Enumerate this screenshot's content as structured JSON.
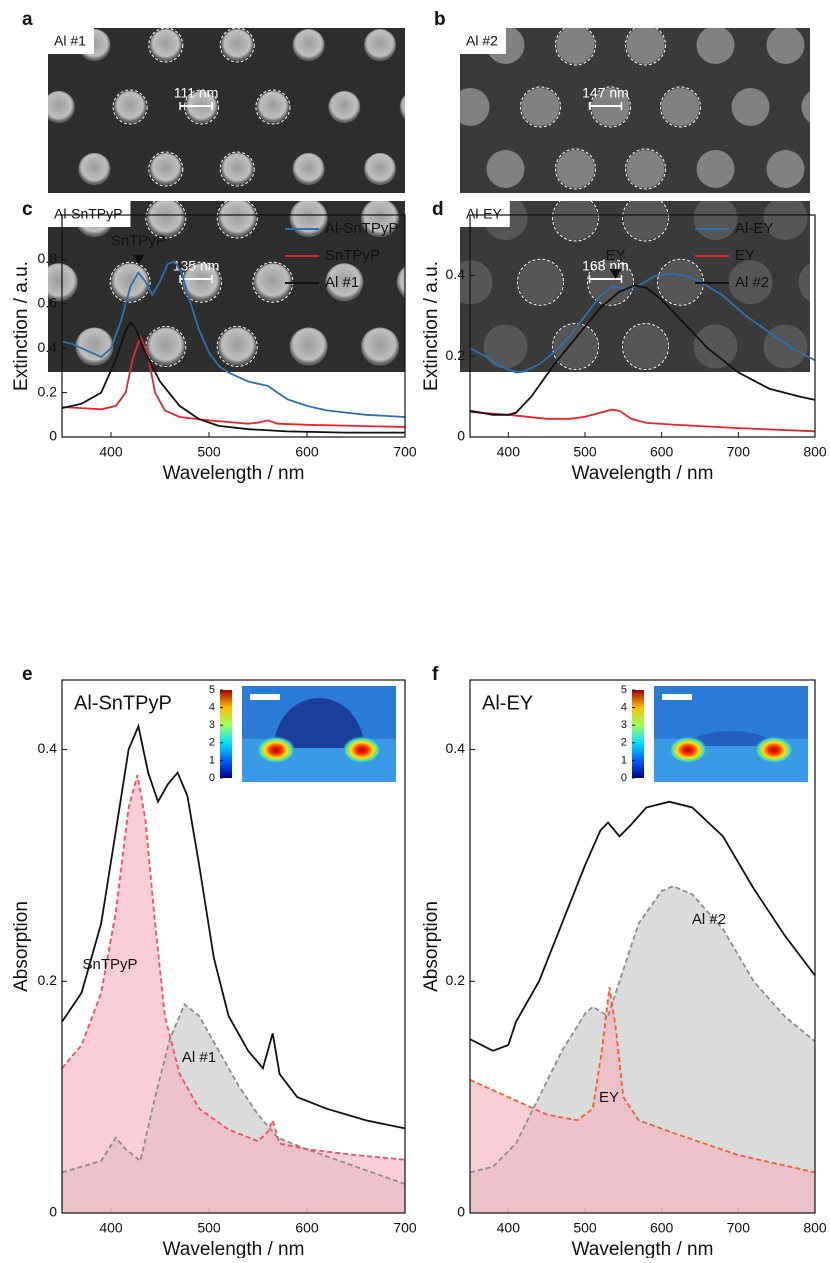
{
  "figure": {
    "images": [
      {
        "panel": "a",
        "top": {
          "label": "Al #1",
          "scale": "111 nm"
        },
        "bottom": {
          "label": "Al-SnTPyP",
          "scale": "135 nm"
        }
      },
      {
        "panel": "b",
        "top": {
          "label": "Al #2",
          "scale": "147 nm"
        },
        "bottom": {
          "label": "Al-EY",
          "scale": "168 nm"
        }
      }
    ]
  },
  "chart_data": [
    {
      "type": "line",
      "panel": "c",
      "x_label": "Wavelength / nm",
      "y_label": "Extinction / a.u.",
      "xlim": [
        350,
        700
      ],
      "xticks": [
        400,
        500,
        600,
        700
      ],
      "ylim": [
        0,
        1.0
      ],
      "yticks": [
        0.0,
        0.2,
        0.4,
        0.6,
        0.8
      ],
      "legend": "top-right",
      "annotations": [
        {
          "text": "SnTPyP",
          "x": 428
        }
      ],
      "series": [
        {
          "name": "Al-SnTPyP",
          "color": "#2e6fad",
          "x": [
            350,
            360,
            370,
            380,
            390,
            400,
            410,
            420,
            428,
            435,
            442,
            450,
            458,
            465,
            472,
            480,
            490,
            500,
            510,
            520,
            530,
            540,
            550,
            560,
            570,
            580,
            600,
            620,
            640,
            660,
            680,
            700
          ],
          "values": [
            0.43,
            0.42,
            0.4,
            0.38,
            0.36,
            0.4,
            0.52,
            0.68,
            0.74,
            0.7,
            0.64,
            0.7,
            0.78,
            0.79,
            0.74,
            0.62,
            0.48,
            0.38,
            0.32,
            0.29,
            0.27,
            0.25,
            0.24,
            0.23,
            0.2,
            0.17,
            0.14,
            0.12,
            0.11,
            0.1,
            0.095,
            0.09
          ]
        },
        {
          "name": "SnTPyP",
          "color": "#e0282e",
          "x": [
            350,
            370,
            390,
            405,
            415,
            422,
            430,
            437,
            445,
            455,
            470,
            500,
            540,
            550,
            560,
            570,
            600,
            650,
            700
          ],
          "values": [
            0.135,
            0.13,
            0.125,
            0.14,
            0.2,
            0.35,
            0.45,
            0.38,
            0.2,
            0.12,
            0.09,
            0.075,
            0.06,
            0.065,
            0.075,
            0.06,
            0.055,
            0.05,
            0.045
          ]
        },
        {
          "name": "Al #1",
          "color": "#111111",
          "x": [
            350,
            370,
            390,
            405,
            415,
            420,
            425,
            435,
            450,
            470,
            490,
            510,
            540,
            580,
            640,
            700
          ],
          "values": [
            0.13,
            0.15,
            0.2,
            0.35,
            0.48,
            0.515,
            0.49,
            0.38,
            0.25,
            0.14,
            0.08,
            0.05,
            0.035,
            0.025,
            0.02,
            0.02
          ]
        }
      ]
    },
    {
      "type": "line",
      "panel": "d",
      "x_label": "Wavelength / nm",
      "y_label": "Extinction / a.u.",
      "xlim": [
        350,
        800
      ],
      "xticks": [
        400,
        500,
        600,
        700,
        800
      ],
      "ylim": [
        0,
        0.55
      ],
      "yticks": [
        0.0,
        0.2,
        0.4
      ],
      "legend": "top-right",
      "annotations": [
        {
          "text": "EY",
          "x": 540
        }
      ],
      "series": [
        {
          "name": "Al-EY",
          "color": "#2e6fad",
          "x": [
            350,
            370,
            390,
            410,
            420,
            440,
            460,
            480,
            500,
            520,
            535,
            545,
            560,
            575,
            590,
            610,
            630,
            650,
            680,
            710,
            740,
            770,
            800
          ],
          "values": [
            0.22,
            0.2,
            0.175,
            0.16,
            0.162,
            0.18,
            0.21,
            0.25,
            0.3,
            0.35,
            0.372,
            0.37,
            0.368,
            0.38,
            0.398,
            0.405,
            0.4,
            0.385,
            0.35,
            0.3,
            0.26,
            0.22,
            0.19
          ]
        },
        {
          "name": "EY",
          "color": "#e0282e",
          "x": [
            350,
            400,
            450,
            480,
            500,
            520,
            535,
            545,
            560,
            580,
            620,
            700,
            800
          ],
          "values": [
            0.062,
            0.055,
            0.045,
            0.045,
            0.05,
            0.06,
            0.068,
            0.065,
            0.045,
            0.035,
            0.03,
            0.022,
            0.014
          ]
        },
        {
          "name": "Al #2",
          "color": "#111111",
          "x": [
            350,
            380,
            400,
            410,
            430,
            460,
            490,
            520,
            545,
            565,
            580,
            600,
            630,
            660,
            700,
            740,
            780,
            800
          ],
          "values": [
            0.065,
            0.055,
            0.055,
            0.06,
            0.1,
            0.18,
            0.25,
            0.32,
            0.36,
            0.375,
            0.37,
            0.34,
            0.28,
            0.22,
            0.16,
            0.12,
            0.1,
            0.092
          ]
        }
      ]
    },
    {
      "type": "area",
      "panel": "e",
      "title": "Al-SnTPyP",
      "x_label": "Wavelength / nm",
      "y_label": "Absorption",
      "xlim": [
        350,
        700
      ],
      "xticks": [
        400,
        500,
        600,
        700
      ],
      "ylim": [
        0,
        0.46
      ],
      "yticks": [
        0.0,
        0.2,
        0.4
      ],
      "inset": {
        "colorbar_ticks": [
          0,
          1,
          2,
          3,
          4,
          5
        ]
      },
      "series": [
        {
          "name": "Al #1",
          "color": "#8c8c8c",
          "fill": "#c8c8c8",
          "linestyle": "dashed",
          "x": [
            350,
            390,
            405,
            415,
            430,
            445,
            460,
            475,
            490,
            510,
            530,
            550,
            570,
            600,
            650,
            700
          ],
          "values": [
            0.035,
            0.045,
            0.065,
            0.055,
            0.045,
            0.1,
            0.15,
            0.18,
            0.17,
            0.14,
            0.11,
            0.085,
            0.065,
            0.055,
            0.04,
            0.025
          ]
        },
        {
          "name": "SnTPyP",
          "color": "#f05060",
          "fill": "#f8b4c0",
          "linestyle": "dashed",
          "x": [
            350,
            370,
            390,
            405,
            418,
            427,
            435,
            445,
            455,
            470,
            490,
            520,
            550,
            560,
            565,
            572,
            600,
            650,
            700
          ],
          "values": [
            0.125,
            0.145,
            0.19,
            0.26,
            0.35,
            0.378,
            0.34,
            0.25,
            0.17,
            0.12,
            0.09,
            0.072,
            0.062,
            0.07,
            0.08,
            0.06,
            0.055,
            0.05,
            0.046
          ]
        },
        {
          "color": "#111111",
          "x": [
            350,
            370,
            390,
            405,
            418,
            428,
            438,
            448,
            458,
            468,
            478,
            490,
            505,
            520,
            540,
            555,
            565,
            572,
            590,
            620,
            660,
            700
          ],
          "values": [
            0.165,
            0.19,
            0.25,
            0.33,
            0.4,
            0.42,
            0.38,
            0.355,
            0.37,
            0.38,
            0.36,
            0.3,
            0.22,
            0.17,
            0.14,
            0.125,
            0.155,
            0.12,
            0.1,
            0.09,
            0.08,
            0.073
          ]
        }
      ]
    },
    {
      "type": "area",
      "panel": "f",
      "title": "Al-EY",
      "x_label": "Wavelength / nm",
      "y_label": "Absorption",
      "xlim": [
        350,
        800
      ],
      "xticks": [
        400,
        500,
        600,
        700,
        800
      ],
      "ylim": [
        0,
        0.46
      ],
      "yticks": [
        0.0,
        0.2,
        0.4
      ],
      "inset": {
        "colorbar_ticks": [
          0,
          1,
          2,
          3,
          4,
          5
        ]
      },
      "series": [
        {
          "name": "Al #2",
          "color": "#8c8c8c",
          "fill": "#c8c8c8",
          "linestyle": "dashed",
          "x": [
            350,
            380,
            410,
            440,
            470,
            500,
            510,
            530,
            545,
            570,
            600,
            615,
            640,
            680,
            720,
            760,
            800
          ],
          "values": [
            0.035,
            0.04,
            0.06,
            0.1,
            0.14,
            0.172,
            0.178,
            0.17,
            0.2,
            0.25,
            0.278,
            0.282,
            0.275,
            0.245,
            0.2,
            0.17,
            0.148
          ]
        },
        {
          "name": "EY",
          "color": "#f06030",
          "fill": "#f8b4c0",
          "linestyle": "dashed",
          "x": [
            350,
            400,
            450,
            490,
            510,
            522,
            532,
            540,
            550,
            570,
            620,
            700,
            800
          ],
          "values": [
            0.115,
            0.1,
            0.085,
            0.08,
            0.09,
            0.14,
            0.195,
            0.16,
            0.1,
            0.08,
            0.068,
            0.05,
            0.035
          ]
        },
        {
          "color": "#111111",
          "x": [
            350,
            380,
            400,
            410,
            440,
            470,
            500,
            520,
            530,
            545,
            560,
            580,
            610,
            640,
            680,
            720,
            760,
            800
          ],
          "values": [
            0.15,
            0.14,
            0.145,
            0.165,
            0.2,
            0.25,
            0.3,
            0.33,
            0.337,
            0.325,
            0.335,
            0.35,
            0.355,
            0.35,
            0.325,
            0.28,
            0.24,
            0.205
          ]
        }
      ]
    }
  ]
}
